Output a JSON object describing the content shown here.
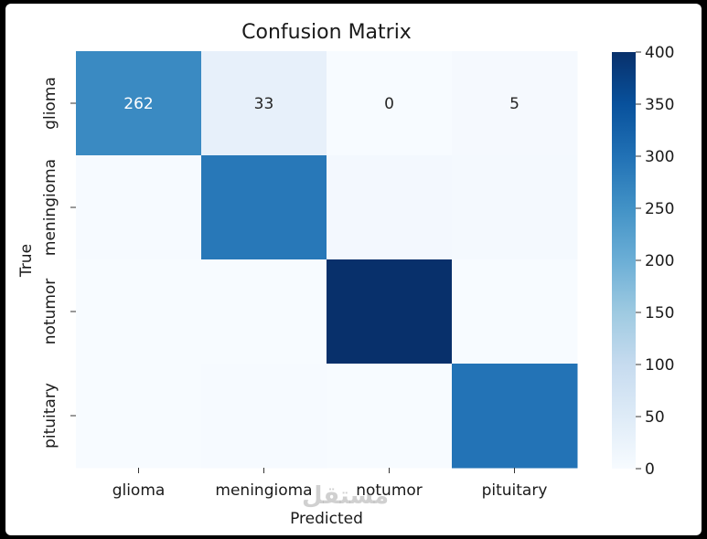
{
  "chart_data": {
    "type": "heatmap",
    "title": "Confusion Matrix",
    "xlabel": "Predicted",
    "ylabel": "True",
    "x_categories": [
      "glioma",
      "meningioma",
      "notumor",
      "pituitary"
    ],
    "y_categories": [
      "glioma",
      "meningioma",
      "notumor",
      "pituitary"
    ],
    "values": [
      [
        262,
        33,
        0,
        5
      ],
      [
        2,
        290,
        8,
        6
      ],
      [
        0,
        0,
        405,
        0
      ],
      [
        0,
        3,
        0,
        297
      ]
    ],
    "annotations": [
      {
        "row": 0,
        "col": 0,
        "text": "262"
      },
      {
        "row": 0,
        "col": 1,
        "text": "33"
      },
      {
        "row": 0,
        "col": 2,
        "text": "0"
      },
      {
        "row": 0,
        "col": 3,
        "text": "5"
      }
    ],
    "colormap": "Blues",
    "colorbar": {
      "range": [
        0,
        400
      ],
      "ticks": [
        0,
        50,
        100,
        150,
        200,
        250,
        300,
        350,
        400
      ],
      "tick_labels": [
        "0",
        "50",
        "100",
        "150",
        "200",
        "250",
        "300",
        "350",
        "400"
      ]
    },
    "grid": false,
    "legend": "colorbar-right"
  },
  "watermark": "مستقل"
}
